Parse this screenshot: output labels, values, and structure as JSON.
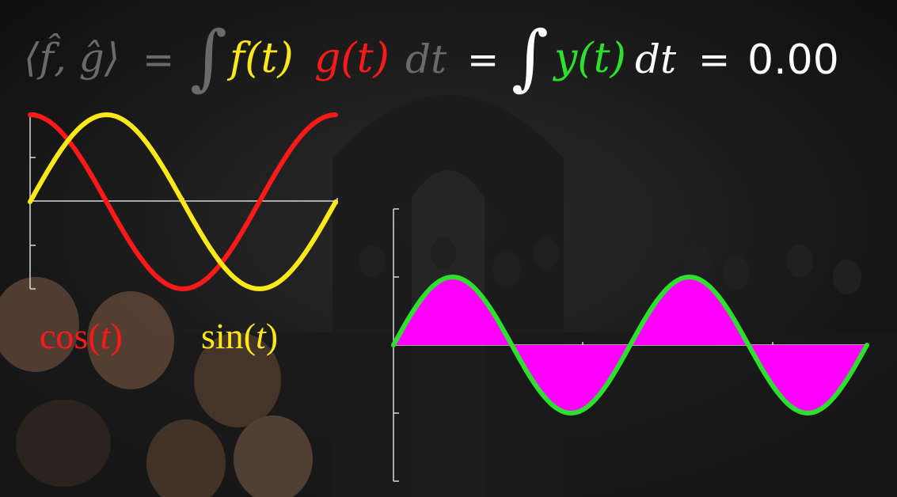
{
  "equation": {
    "inner_product": "⟨f̂, ĝ⟩",
    "equals_1": "=",
    "integral_1": "∫",
    "f_of_t": "f(t)",
    "g_of_t": "g(t)",
    "dt_1": "dt",
    "equals_2": "=",
    "integral_2": "∫",
    "y_of_t": "y(t)",
    "dt_2": "dt",
    "equals_3": "=",
    "result": "0.00"
  },
  "labels": {
    "cos": "cos",
    "cos_arg": "t",
    "sin": "sin",
    "sin_arg": "t"
  },
  "colors": {
    "cos": "#ff1a1a",
    "sin": "#ffe81a",
    "product": "#2ee02e",
    "fill": "#ff00ff",
    "dim_text": "#6a6a6a",
    "white": "#ffffff"
  },
  "chart_data": [
    {
      "type": "line",
      "series": [
        {
          "function": "cos(t)",
          "color": "#ff1a1a"
        },
        {
          "function": "sin(t)",
          "color": "#ffe81a"
        }
      ],
      "xlim": [
        0,
        6.283
      ],
      "ylim": [
        -1,
        1
      ]
    },
    {
      "type": "area",
      "series": [
        {
          "function": "cos(t)·sin(t)",
          "color": "#2ee02e",
          "fill": "#ff00ff"
        }
      ],
      "xlim": [
        0,
        6.283
      ],
      "ylim": [
        -0.5,
        0.5
      ]
    }
  ]
}
